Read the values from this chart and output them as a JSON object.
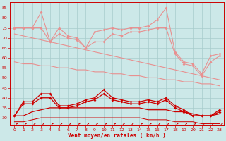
{
  "xlabel": "Vent moyen/en rafales ( km/h )",
  "background_color": "#cce8e8",
  "x": [
    0,
    1,
    2,
    3,
    4,
    5,
    6,
    7,
    8,
    9,
    10,
    11,
    12,
    13,
    14,
    15,
    16,
    17,
    18,
    19,
    20,
    21,
    22,
    23
  ],
  "line_top1": [
    75,
    75,
    75,
    83,
    68,
    75,
    71,
    70,
    65,
    73,
    74,
    75,
    74,
    75,
    75,
    76,
    79,
    85,
    63,
    58,
    57,
    52,
    61,
    62
  ],
  "line_top2": [
    75,
    75,
    75,
    75,
    68,
    72,
    70,
    69,
    65,
    68,
    68,
    72,
    71,
    73,
    73,
    74,
    75,
    75,
    62,
    57,
    56,
    51,
    58,
    61
  ],
  "line_diag1": [
    72,
    71,
    70,
    69,
    68,
    67,
    66,
    65,
    64,
    63,
    62,
    61,
    60,
    59,
    58,
    57,
    56,
    55,
    54,
    53,
    52,
    51,
    50,
    49
  ],
  "line_diag2": [
    58,
    57,
    57,
    56,
    56,
    55,
    55,
    54,
    54,
    53,
    53,
    52,
    52,
    51,
    51,
    50,
    50,
    49,
    49,
    48,
    48,
    47,
    47,
    46
  ],
  "line_mid1": [
    31,
    38,
    38,
    42,
    42,
    36,
    36,
    37,
    39,
    40,
    44,
    40,
    39,
    38,
    38,
    39,
    38,
    40,
    36,
    34,
    31,
    31,
    31,
    34
  ],
  "line_mid2": [
    31,
    37,
    37,
    40,
    40,
    35,
    35,
    36,
    38,
    39,
    42,
    39,
    38,
    37,
    37,
    38,
    37,
    39,
    35,
    33,
    31,
    31,
    31,
    33
  ],
  "line_low1": [
    31,
    31,
    33,
    34,
    35,
    35,
    35,
    35,
    35,
    35,
    35,
    35,
    35,
    35,
    35,
    34,
    34,
    34,
    33,
    33,
    32,
    31,
    31,
    32
  ],
  "line_low2": [
    28,
    28,
    29,
    30,
    30,
    30,
    30,
    30,
    30,
    30,
    30,
    30,
    30,
    30,
    30,
    29,
    29,
    29,
    28,
    28,
    28,
    27,
    27,
    27
  ],
  "color_light": "#e89090",
  "color_dark": "#cc0000",
  "ylim": [
    26,
    88
  ],
  "yticks": [
    30,
    35,
    40,
    45,
    50,
    55,
    60,
    65,
    70,
    75,
    80,
    85
  ],
  "xticks": [
    0,
    1,
    2,
    3,
    4,
    5,
    6,
    7,
    8,
    9,
    10,
    11,
    12,
    13,
    14,
    15,
    16,
    17,
    18,
    19,
    20,
    21,
    22,
    23
  ]
}
